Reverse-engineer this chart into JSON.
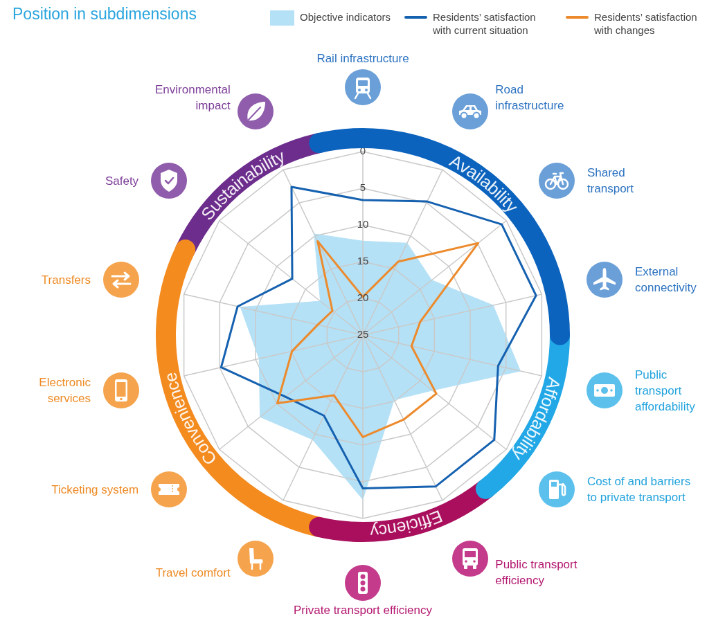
{
  "chart_data": {
    "type": "radar",
    "title": "Position in subdimensions",
    "categories": [
      "Rail infrastructure",
      "Road infrastructure",
      "Shared transport",
      "External connectivity",
      "Public transport affordability",
      "Cost of and barriers to private transport",
      "Public transport efficiency",
      "Private transport efficiency",
      "Travel comfort",
      "Ticketing system",
      "Electronic services",
      "Transfers",
      "Safety",
      "Environmental impact"
    ],
    "series": [
      {
        "name": "Objective indicators",
        "color": "#b5e1f6",
        "values": [
          12.2,
          11.1,
          13,
          6.8,
          3,
          12.9,
          15.2,
          2.6,
          9.2,
          7.1,
          10.5,
          7.9,
          17.6,
          9.7
        ]
      },
      {
        "name": "Residents’ satisfaction with current situation",
        "color": "#1561b0",
        "values": [
          6.6,
          4.8,
          0.8,
          0.8,
          6.1,
          2.1,
          2.1,
          4.1,
          12.8,
          11.5,
          5.2,
          7.5,
          12.7,
          2.6
        ]
      },
      {
        "name": "Residents’ satisfaction with changes",
        "color": "#ec8a2c",
        "values": [
          19.8,
          13.9,
          4.9,
          17,
          18.2,
          12.2,
          12.2,
          11.1,
          15.9,
          10.1,
          15.1,
          18.7,
          19.7,
          10.8
        ]
      }
    ],
    "ylim": [
      25,
      0
    ],
    "yticks": [
      0,
      5,
      10,
      15,
      20,
      25
    ],
    "grid": true,
    "legend": "top right",
    "annotations": [
      "Availability",
      "Affordability",
      "Efficiency",
      "Convenience",
      "Sustainability"
    ]
  }
}
